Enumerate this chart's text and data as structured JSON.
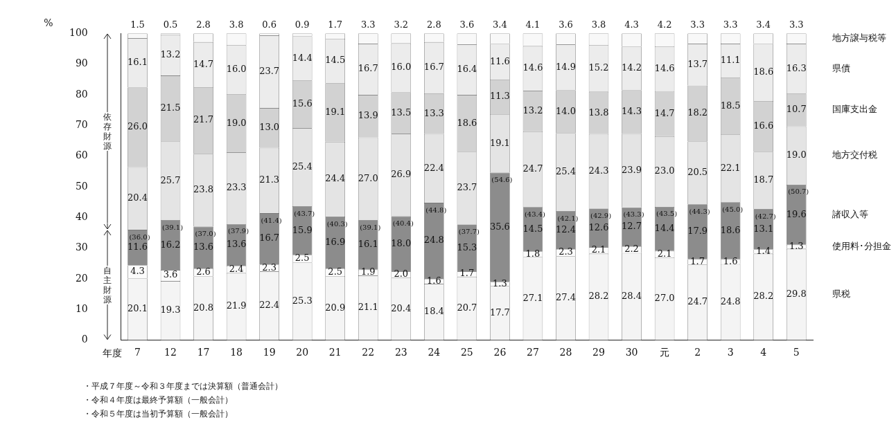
{
  "chart_data": {
    "type": "bar",
    "stacked": true,
    "legend": "right",
    "grid": false,
    "xlabel": "年度",
    "ylabel": "%",
    "categories": [
      "7",
      "12",
      "17",
      "18",
      "19",
      "20",
      "21",
      "22",
      "23",
      "24",
      "25",
      "26",
      "27",
      "28",
      "29",
      "30",
      "元",
      "2",
      "3",
      "4",
      "5"
    ],
    "ylim": [
      0,
      100
    ],
    "yticks": [
      0,
      10,
      20,
      30,
      40,
      50,
      60,
      70,
      80,
      90,
      100
    ],
    "series": [
      {
        "name": "県税",
        "color": "#f4f4f4",
        "values": [
          20.1,
          19.3,
          20.8,
          21.9,
          22.4,
          25.3,
          20.9,
          21.1,
          20.4,
          18.4,
          20.7,
          17.7,
          27.1,
          27.4,
          28.2,
          28.4,
          27.0,
          24.7,
          24.8,
          28.2,
          29.8
        ],
        "value_labels": [
          "20.1",
          "19.3",
          "20.8",
          "21.9",
          "22.4",
          "25.3",
          "20.9",
          "21.1",
          "20.4",
          "18.4",
          "20.7",
          "17.7",
          "27.1",
          "27.4",
          "28.2",
          "28.4",
          "27.0",
          "24.7",
          "24.8",
          "28.2",
          "29.8"
        ]
      },
      {
        "name": "使用料･分担金",
        "color": "#fbfbfb",
        "values": [
          4.3,
          3.6,
          2.6,
          2.4,
          2.3,
          2.5,
          2.5,
          1.9,
          2.0,
          1.6,
          1.7,
          1.3,
          1.8,
          2.3,
          2.1,
          2.2,
          2.1,
          1.7,
          1.6,
          1.4,
          1.3
        ],
        "value_labels": [
          "4.3",
          "3.6",
          "2.6",
          "2.4",
          "2.3",
          "2.5",
          "2.5",
          "1.9",
          "2.0",
          "1.6",
          "1.7",
          "1.3",
          "1.8",
          "2.3",
          "2.1",
          "2.2",
          "2.1",
          "1.7",
          "1.6",
          "1.4",
          "1.3"
        ]
      },
      {
        "name": "諸収入等",
        "color": "#8c8c8c",
        "values": [
          11.6,
          16.2,
          13.6,
          13.6,
          16.7,
          15.9,
          16.9,
          16.1,
          18.0,
          24.8,
          15.3,
          35.6,
          14.5,
          12.4,
          12.6,
          12.7,
          14.4,
          17.9,
          18.6,
          13.1,
          19.6
        ],
        "value_labels": [
          "11.6",
          "16.2",
          "13.6",
          "13.6",
          "16.7",
          "15.9",
          "16.9",
          "16.1",
          "18.0",
          "24.8",
          "15.3",
          "35.6",
          "14.5",
          "12.4",
          "12.6",
          "12.7",
          "14.4",
          "17.9",
          "18.6",
          "13.1",
          "19.6"
        ]
      },
      {
        "name": "地方交付税",
        "color": "#e4e4e4",
        "values": [
          20.4,
          25.7,
          23.8,
          23.3,
          21.3,
          25.4,
          24.4,
          27.0,
          26.9,
          22.4,
          23.7,
          19.1,
          24.7,
          25.4,
          24.3,
          23.9,
          23.0,
          20.5,
          22.1,
          18.7,
          19.0
        ],
        "value_labels": [
          "20.4",
          "25.7",
          "23.8",
          "23.3",
          "21.3",
          "25.4",
          "24.4",
          "27.0",
          "26.9",
          "22.4",
          "23.7",
          "19.1",
          "24.7",
          "25.4",
          "24.3",
          "23.9",
          "23.0",
          "20.5",
          "22.1",
          "18.7",
          "19.0"
        ]
      },
      {
        "name": "国庫支出金",
        "color": "#d2d2d2",
        "values": [
          26.0,
          21.5,
          21.7,
          19.0,
          13.0,
          15.6,
          19.1,
          13.9,
          13.5,
          13.3,
          18.6,
          11.3,
          13.2,
          14.0,
          13.8,
          14.3,
          14.7,
          18.2,
          18.5,
          16.6,
          10.7
        ],
        "value_labels": [
          "26.0",
          "21.5",
          "21.7",
          "19.0",
          "13.0",
          "15.6",
          "19.1",
          "13.9",
          "13.5",
          "13.3",
          "18.6",
          "11.3",
          "13.2",
          "14.0",
          "13.8",
          "14.3",
          "14.7",
          "18.2",
          "18.5",
          "16.6",
          "10.7"
        ]
      },
      {
        "name": "県債",
        "color": "#ececec",
        "values": [
          16.1,
          13.2,
          14.7,
          16.0,
          23.7,
          14.4,
          14.5,
          16.7,
          16.0,
          16.7,
          16.4,
          11.6,
          14.6,
          14.9,
          15.2,
          14.2,
          14.6,
          13.7,
          11.1,
          18.6,
          16.3
        ],
        "value_labels": [
          "16.1",
          "13.2",
          "14.7",
          "16.0",
          "23.7",
          "14.4",
          "14.5",
          "16.7",
          "16.0",
          "16.7",
          "16.4",
          "11.6",
          "14.6",
          "14.9",
          "15.2",
          "14.2",
          "14.6",
          "13.7",
          "11.1",
          "18.6",
          "16.3"
        ]
      },
      {
        "name": "地方譲与税等",
        "color": "#f8f8f8",
        "values": [
          1.5,
          0.5,
          2.8,
          3.8,
          0.6,
          0.9,
          1.7,
          3.3,
          3.2,
          2.8,
          3.6,
          3.4,
          4.1,
          3.6,
          3.8,
          4.3,
          4.2,
          3.3,
          3.3,
          3.4,
          3.3
        ],
        "value_labels": [
          "1.5",
          "0.5",
          "2.8",
          "3.8",
          "0.6",
          "0.9",
          "1.7",
          "3.3",
          "3.2",
          "2.8",
          "3.6",
          "3.4",
          "4.1",
          "3.6",
          "3.8",
          "4.3",
          "4.2",
          "3.3",
          "3.3",
          "3.4",
          "3.3"
        ]
      }
    ],
    "annotations": [
      "依存財源",
      "自主財源",
      "・平成７年度～令和３年度までは決算額（普通会計）",
      "・令和４年度は最終予算額（一般会計）",
      "・令和５年度は当初予算額（一般会計）",
      {
        "text": "(36.0)",
        "x": "7",
        "y": 36.0
      },
      {
        "text": "(39.1)",
        "x": "12",
        "y": 39.1
      },
      {
        "text": "(37.0)",
        "x": "17",
        "y": 37.0
      },
      {
        "text": "(37.9)",
        "x": "18",
        "y": 37.9
      },
      {
        "text": "(41.4)",
        "x": "19",
        "y": 41.4
      },
      {
        "text": "(43.7)",
        "x": "20",
        "y": 43.7
      },
      {
        "text": "(40.3)",
        "x": "21",
        "y": 40.3
      },
      {
        "text": "(39.1)",
        "x": "22",
        "y": 39.1
      },
      {
        "text": "(40.4)",
        "x": "23",
        "y": 40.4
      },
      {
        "text": "(44.8)",
        "x": "24",
        "y": 44.8
      },
      {
        "text": "(37.7)",
        "x": "25",
        "y": 37.7
      },
      {
        "text": "(54.6)",
        "x": "26",
        "y": 54.6
      },
      {
        "text": "(43.4)",
        "x": "27",
        "y": 43.4
      },
      {
        "text": "(42.1)",
        "x": "28",
        "y": 42.1
      },
      {
        "text": "(42.9)",
        "x": "29",
        "y": 42.9
      },
      {
        "text": "(43.3)",
        "x": "30",
        "y": 43.3
      },
      {
        "text": "(43.5)",
        "x": "元",
        "y": 43.5
      },
      {
        "text": "(44.3)",
        "x": "2",
        "y": 44.3
      },
      {
        "text": "(45.0)",
        "x": "3",
        "y": 45.0
      },
      {
        "text": "(42.7)",
        "x": "4",
        "y": 42.7
      },
      {
        "text": "(50.7)",
        "x": "5",
        "y": 50.7
      }
    ]
  }
}
